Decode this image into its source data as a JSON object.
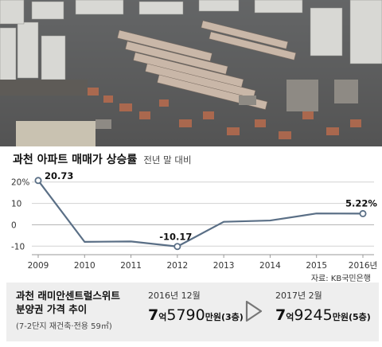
{
  "header": {
    "title": "과천 아파트 매매가 상승률",
    "subtitle": "전년 말 대비"
  },
  "chart_data": {
    "type": "line",
    "x": [
      "2009",
      "2010",
      "2011",
      "2012",
      "2013",
      "2014",
      "2015",
      "2016년"
    ],
    "values": [
      20.73,
      -8.0,
      -7.8,
      -10.17,
      1.4,
      2.0,
      5.3,
      5.22
    ],
    "data_labels": [
      {
        "index": 0,
        "text": "20.73"
      },
      {
        "index": 3,
        "text": "-10.17"
      },
      {
        "index": 7,
        "text": "5.22%"
      }
    ],
    "y_ticks": [
      {
        "value": 20,
        "label": "20%"
      },
      {
        "value": 10,
        "label": "10"
      },
      {
        "value": 0,
        "label": "0"
      },
      {
        "value": -10,
        "label": "-10"
      }
    ],
    "ylim": [
      -14,
      24
    ],
    "grid": true,
    "colors": {
      "line": "#5a6f86",
      "marker_fill": "#ffffff"
    }
  },
  "source": "자료: KB국민은행",
  "info": {
    "name_line1": "과천 래미안센트럴스위트",
    "name_line2": "분양권 가격 추이",
    "note": "(7-2단지 재건축·전용 59㎡)",
    "before": {
      "label": "2016년 12월",
      "eok": "7",
      "eok_unit": "억",
      "man": "5790",
      "man_unit": "만원",
      "floor": "(3층)"
    },
    "after": {
      "label": "2017년 2월",
      "eok": "7",
      "eok_unit": "억",
      "man": "9245",
      "man_unit": "만원",
      "floor": "(5층)"
    }
  },
  "icons": {
    "arrow": "chevron-right-icon"
  }
}
